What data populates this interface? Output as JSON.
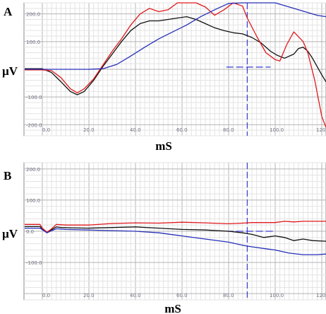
{
  "colors": {
    "black_trace": "#111111",
    "red_trace": "#e0191c",
    "blue_trace": "#2730b8",
    "grid_major": "#b4b4b4",
    "grid_minor": "#e3e3e3",
    "cursor": "#3a3ad0"
  },
  "chart_data": [
    {
      "type": "line",
      "panel_label": "A",
      "xlabel": "mS",
      "ylabel": "µV",
      "xlim": [
        -1,
        121
      ],
      "ylim": [
        -240,
        240
      ],
      "x_ticks": [
        "0.0",
        "20.0",
        "40.0",
        "60.0",
        "80.0",
        "100.0",
        "120.0"
      ],
      "y_ticks": [
        {
          "v": 200,
          "label": "200.0"
        },
        {
          "v": 100,
          "label": "100.0"
        },
        {
          "v": -100,
          "label": "-100.0"
        },
        {
          "v": -200,
          "label": "-200.0"
        }
      ],
      "grid": true,
      "cursor_x": 88,
      "cursor_hbar": {
        "x1": 79,
        "x2": 98,
        "y": 8
      },
      "series": [
        {
          "color": "black_trace",
          "x": [
            -10,
            0,
            4,
            8,
            12,
            15,
            18,
            22,
            26,
            30,
            34,
            38,
            42,
            46,
            50,
            54,
            58,
            62,
            66,
            70,
            74,
            78,
            82,
            86,
            90,
            94,
            98,
            101,
            104,
            108,
            110,
            112,
            114,
            116,
            118,
            120,
            122
          ],
          "y": [
            2,
            2,
            -12,
            -45,
            -80,
            -92,
            -80,
            -40,
            10,
            55,
            100,
            140,
            165,
            175,
            175,
            180,
            185,
            190,
            180,
            165,
            150,
            140,
            132,
            128,
            115,
            95,
            65,
            50,
            40,
            55,
            75,
            80,
            65,
            40,
            10,
            -20,
            -45
          ]
        },
        {
          "color": "red_trace",
          "x": [
            -10,
            0,
            4,
            8,
            12,
            15,
            18,
            22,
            26,
            30,
            34,
            38,
            42,
            46,
            50,
            54,
            58,
            62,
            66,
            70,
            74,
            78,
            82,
            86,
            88,
            92,
            96,
            100,
            102,
            105,
            108,
            112,
            114,
            117,
            120,
            122
          ],
          "y": [
            -2,
            -2,
            -5,
            -30,
            -70,
            -85,
            -70,
            -35,
            15,
            65,
            110,
            160,
            200,
            220,
            208,
            215,
            240,
            258,
            255,
            225,
            195,
            215,
            250,
            228,
            185,
            120,
            60,
            35,
            30,
            90,
            135,
            100,
            60,
            -40,
            -170,
            -210
          ]
        },
        {
          "color": "blue_trace",
          "x": [
            -10,
            0,
            10,
            20,
            26,
            32,
            38,
            44,
            50,
            56,
            62,
            68,
            74,
            80,
            86,
            90,
            95,
            100,
            106,
            112,
            118,
            122
          ],
          "y": [
            0,
            0,
            0,
            0,
            2,
            18,
            48,
            80,
            110,
            135,
            160,
            190,
            215,
            238,
            245,
            244,
            245,
            242,
            225,
            210,
            195,
            190
          ]
        }
      ]
    },
    {
      "type": "line",
      "panel_label": "B",
      "xlabel": "mS",
      "ylabel": "µV",
      "xlim": [
        -1,
        121
      ],
      "ylim": [
        -220,
        220
      ],
      "x_ticks": [
        "0.0",
        "20.0",
        "40.0",
        "60.0",
        "80.0",
        "100.0",
        "120.0"
      ],
      "y_ticks": [
        {
          "v": 200,
          "label": "200.0"
        },
        {
          "v": 100,
          "label": "100.0"
        },
        {
          "v": 0,
          "label": "0.0"
        },
        {
          "v": -100,
          "label": "-100.0"
        }
      ],
      "grid": true,
      "cursor_x": 88,
      "cursor_hbar": {
        "x1": 79,
        "x2": 99,
        "y": 0
      },
      "series": [
        {
          "color": "black_trace",
          "x": [
            -10,
            -1,
            0,
            2,
            4,
            6,
            8,
            12,
            20,
            30,
            40,
            50,
            60,
            70,
            80,
            86,
            90,
            95,
            100,
            104,
            108,
            112,
            116,
            122
          ],
          "y": [
            15,
            15,
            8,
            -5,
            5,
            14,
            12,
            11,
            10,
            12,
            14,
            10,
            6,
            4,
            0,
            -5,
            -10,
            -20,
            -15,
            -20,
            -30,
            -25,
            -30,
            -32
          ]
        },
        {
          "color": "red_trace",
          "x": [
            -10,
            -1,
            0,
            2,
            4,
            6,
            10,
            20,
            30,
            40,
            50,
            60,
            70,
            80,
            86,
            90,
            96,
            100,
            104,
            108,
            112,
            116,
            122
          ],
          "y": [
            22,
            22,
            10,
            -3,
            8,
            22,
            20,
            20,
            25,
            27,
            26,
            29,
            27,
            24,
            26,
            28,
            28,
            28,
            32,
            30,
            32,
            32,
            32
          ]
        },
        {
          "color": "blue_trace",
          "x": [
            -10,
            -1,
            0,
            2,
            4,
            6,
            10,
            20,
            30,
            40,
            50,
            60,
            70,
            80,
            86,
            90,
            95,
            100,
            106,
            112,
            118,
            122
          ],
          "y": [
            10,
            10,
            5,
            -5,
            2,
            8,
            6,
            4,
            2,
            0,
            -5,
            -15,
            -25,
            -35,
            -45,
            -50,
            -55,
            -60,
            -70,
            -75,
            -75,
            -73
          ]
        }
      ]
    }
  ]
}
